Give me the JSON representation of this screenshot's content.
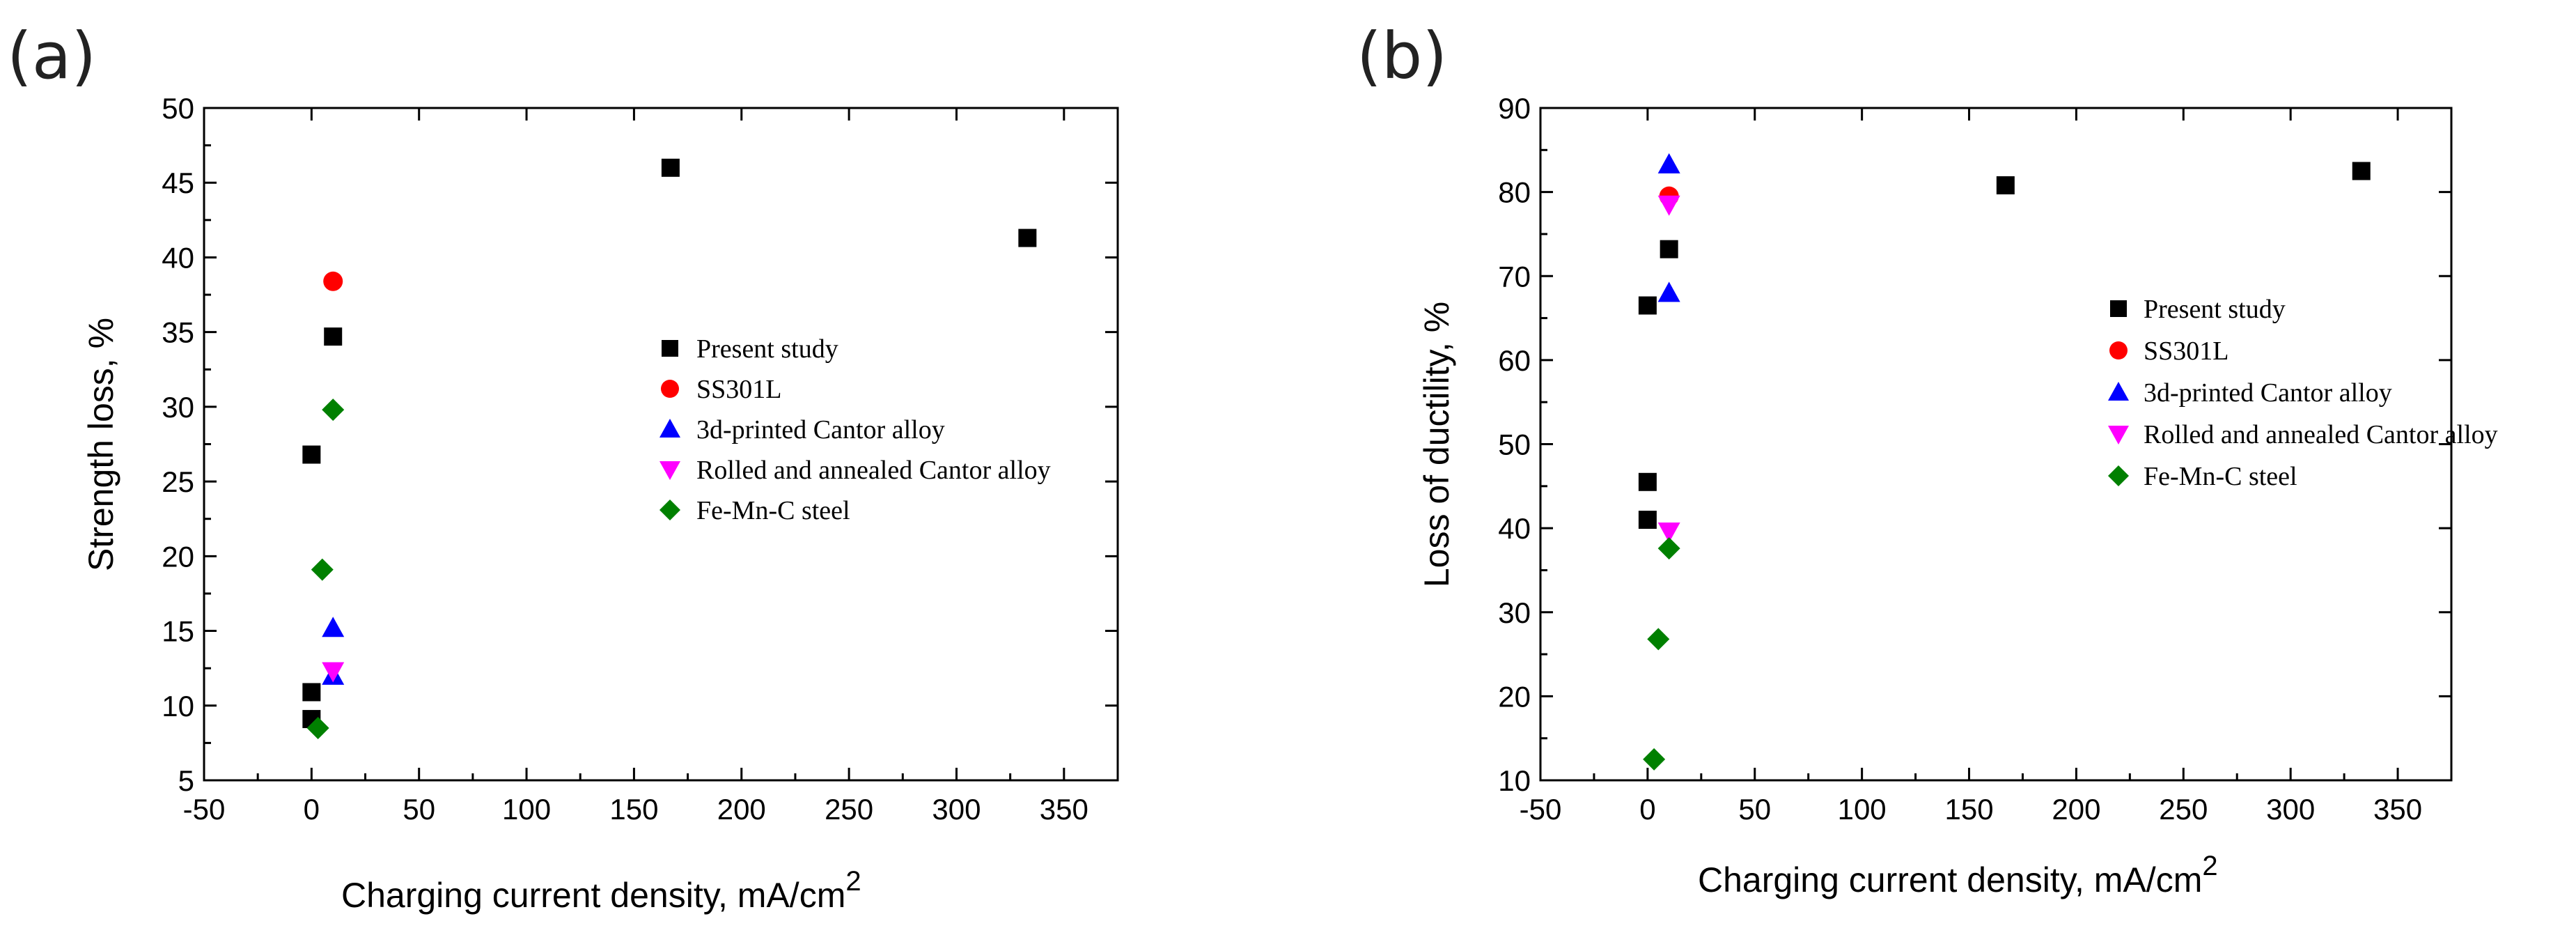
{
  "chart_data": [
    {
      "type": "scatter",
      "panel_label": "(a)",
      "title": "",
      "xlabel": "Charging current density, mA/cm",
      "xlabel_superscript": "2",
      "ylabel": "Strength loss, %",
      "xlim": [
        -50,
        375
      ],
      "ylim": [
        5,
        50
      ],
      "xticks": [
        -50,
        0,
        50,
        100,
        150,
        200,
        250,
        300,
        350
      ],
      "yticks": [
        5,
        10,
        15,
        20,
        25,
        30,
        35,
        40,
        45,
        50
      ],
      "legend_position": "center-right",
      "series": [
        {
          "name": "Present study",
          "marker": "square",
          "color": "#000000",
          "points": [
            [
              0,
              26.8
            ],
            [
              0,
              10.9
            ],
            [
              0,
              9.1
            ],
            [
              10,
              34.7
            ],
            [
              167,
              46
            ],
            [
              333,
              41.3
            ]
          ]
        },
        {
          "name": "SS301L",
          "marker": "circle",
          "color": "#ff0000",
          "points": [
            [
              10,
              38.4
            ]
          ]
        },
        {
          "name": "3d-printed Cantor alloy",
          "marker": "triangle-up",
          "color": "#0000ff",
          "points": [
            [
              10,
              15.2
            ],
            [
              10,
              12
            ]
          ]
        },
        {
          "name": "Rolled and annealed Cantor alloy",
          "marker": "triangle-down",
          "color": "#ff00ff",
          "points": [
            [
              10,
              12.3
            ]
          ]
        },
        {
          "name": "Fe-Mn-C steel",
          "marker": "diamond",
          "color": "#008000",
          "points": [
            [
              10,
              29.8
            ],
            [
              5,
              19.1
            ],
            [
              3,
              8.5
            ]
          ]
        }
      ]
    },
    {
      "type": "scatter",
      "panel_label": "(b)",
      "title": "",
      "xlabel": "Charging current density, mA/cm",
      "xlabel_superscript": "2",
      "ylabel": "Loss of ductility, %",
      "xlim": [
        -50,
        375
      ],
      "ylim": [
        10,
        90
      ],
      "xticks": [
        -50,
        0,
        50,
        100,
        150,
        200,
        250,
        300,
        350
      ],
      "yticks": [
        10,
        20,
        30,
        40,
        50,
        60,
        70,
        80,
        90
      ],
      "legend_position": "center-right",
      "series": [
        {
          "name": "Present study",
          "marker": "square",
          "color": "#000000",
          "points": [
            [
              0,
              66.5
            ],
            [
              0,
              45.5
            ],
            [
              0,
              41
            ],
            [
              10,
              73.2
            ],
            [
              167,
              80.8
            ],
            [
              333,
              82.5
            ]
          ]
        },
        {
          "name": "SS301L",
          "marker": "circle",
          "color": "#ff0000",
          "points": [
            [
              10,
              79.5
            ]
          ]
        },
        {
          "name": "3d-printed Cantor alloy",
          "marker": "triangle-up",
          "color": "#0000ff",
          "points": [
            [
              10,
              83.3
            ],
            [
              10,
              68
            ]
          ]
        },
        {
          "name": "Rolled and annealed Cantor alloy",
          "marker": "triangle-down",
          "color": "#ff00ff",
          "points": [
            [
              10,
              78.5
            ],
            [
              10,
              39.6
            ]
          ]
        },
        {
          "name": "Fe-Mn-C steel",
          "marker": "diamond",
          "color": "#008000",
          "points": [
            [
              10,
              37.6
            ],
            [
              5,
              26.8
            ],
            [
              3,
              12.5
            ]
          ]
        }
      ]
    }
  ]
}
